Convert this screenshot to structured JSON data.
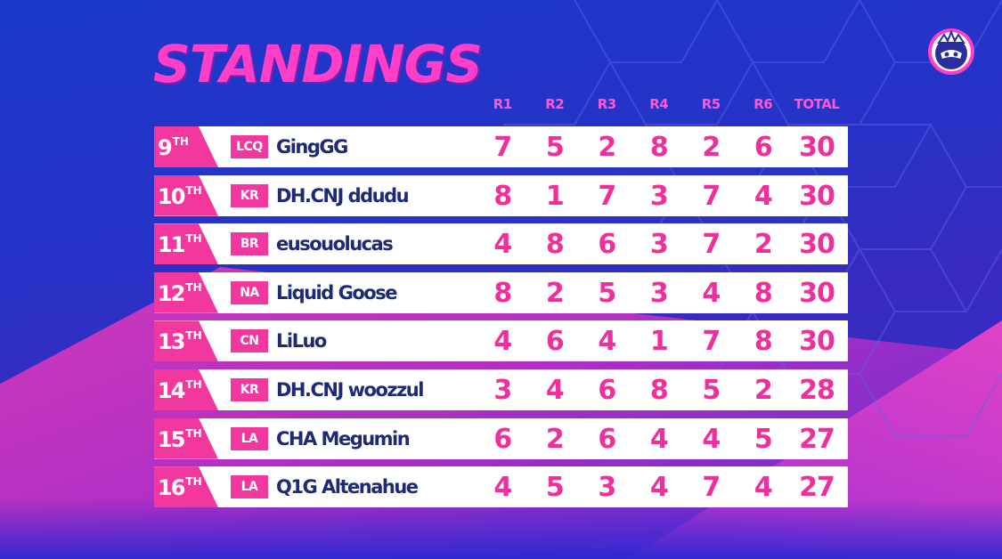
{
  "title": "STANDINGS",
  "columns": [
    "R1",
    "R2",
    "R3",
    "R4",
    "R5",
    "R6",
    "TOTAL"
  ],
  "rows": [
    {
      "rank": "9",
      "suffix": "TH",
      "region": "LCQ",
      "player": "GingGG",
      "scores": [
        7,
        5,
        2,
        8,
        2,
        6
      ],
      "total": 30
    },
    {
      "rank": "10",
      "suffix": "TH",
      "region": "KR",
      "player": "DH.CNJ ddudu",
      "scores": [
        8,
        1,
        7,
        3,
        7,
        4
      ],
      "total": 30
    },
    {
      "rank": "11",
      "suffix": "TH",
      "region": "BR",
      "player": "eusouolucas",
      "scores": [
        4,
        8,
        6,
        3,
        7,
        2
      ],
      "total": 30
    },
    {
      "rank": "12",
      "suffix": "TH",
      "region": "NA",
      "player": "Liquid Goose",
      "scores": [
        8,
        2,
        5,
        3,
        4,
        8
      ],
      "total": 30
    },
    {
      "rank": "13",
      "suffix": "TH",
      "region": "CN",
      "player": "LiLuo",
      "scores": [
        4,
        6,
        4,
        1,
        7,
        8
      ],
      "total": 30
    },
    {
      "rank": "14",
      "suffix": "TH",
      "region": "KR",
      "player": "DH.CNJ woozzul",
      "scores": [
        3,
        4,
        6,
        8,
        5,
        2
      ],
      "total": 28
    },
    {
      "rank": "15",
      "suffix": "TH",
      "region": "LA",
      "player": "CHA Megumin",
      "scores": [
        6,
        2,
        6,
        4,
        4,
        5
      ],
      "total": 27
    },
    {
      "rank": "16",
      "suffix": "TH",
      "region": "LA",
      "player": "Q1G Altenahue",
      "scores": [
        4,
        5,
        3,
        4,
        7,
        4
      ],
      "total": 27
    }
  ],
  "colors": {
    "accent_pink": "#f2389e",
    "title_pink": "#ff3fc8",
    "player_navy": "#1d2a78",
    "background_blue": "#2633c6"
  },
  "icons": {
    "logo": "crowned-mask-logo-icon"
  }
}
